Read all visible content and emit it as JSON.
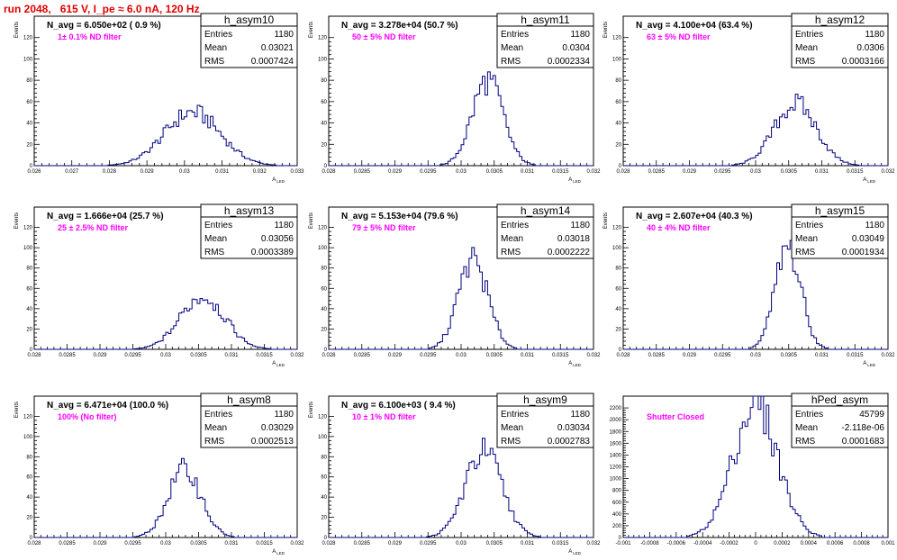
{
  "title": "run 2048,   615 V, I_pe ≈ 6.0 nA, 120 Hz",
  "colors": {
    "title": "#e00000",
    "histogram": "#000080",
    "filter_label": "#ff00ff"
  },
  "chart_data": [
    {
      "type": "histogram",
      "name": "h_asym10",
      "xlabel": "A_LED",
      "ylabel": "Events",
      "xlim": [
        0.026,
        0.033
      ],
      "ylim": [
        0,
        140
      ],
      "xticks": [
        0.026,
        0.027,
        0.028,
        0.029,
        0.03,
        0.031,
        0.032,
        0.033
      ],
      "xticklabels": [
        "0.026",
        "0.027",
        "0.028",
        "0.029",
        "0.03",
        "0.031",
        "0.032",
        "0.033"
      ],
      "yticks": [
        0,
        20,
        40,
        60,
        80,
        100,
        120
      ],
      "navg": "N_avg = 6.050e+02 ( 0.9 %)",
      "filter": "1± 0.1% ND filter",
      "stats": {
        "entries": "1180",
        "mean": "0.03021",
        "rms": "0.0007424"
      },
      "mean": 0.03021,
      "rms": 0.0007424,
      "peak": 50
    },
    {
      "type": "histogram",
      "name": "h_asym11",
      "xlabel": "A_LED",
      "ylabel": "Events",
      "xlim": [
        0.028,
        0.032
      ],
      "ylim": [
        0,
        140
      ],
      "xticks": [
        0.028,
        0.0285,
        0.029,
        0.0295,
        0.03,
        0.0305,
        0.031,
        0.0315,
        0.032
      ],
      "xticklabels": [
        "0.028",
        "0.0285",
        "0.029",
        "0.0295",
        "0.03",
        "0.0305",
        "0.031",
        "0.0315",
        "0.032"
      ],
      "yticks": [
        0,
        20,
        40,
        60,
        80,
        100,
        120
      ],
      "navg": "N_avg = 3.278e+04 (50.7 %)",
      "filter": "50 ± 5% ND filter",
      "stats": {
        "entries": "1180",
        "mean": "0.0304",
        "rms": "0.0002334"
      },
      "mean": 0.0304,
      "rms": 0.0002334,
      "peak": 80
    },
    {
      "type": "histogram",
      "name": "h_asym12",
      "xlabel": "A_LED",
      "ylabel": "Events",
      "xlim": [
        0.028,
        0.032
      ],
      "ylim": [
        0,
        140
      ],
      "xticks": [
        0.028,
        0.0285,
        0.029,
        0.0295,
        0.03,
        0.0305,
        0.031,
        0.0315,
        0.032
      ],
      "xticklabels": [
        "0.028",
        "0.0285",
        "0.029",
        "0.0295",
        "0.03",
        "0.0305",
        "0.031",
        "0.0315",
        "0.032"
      ],
      "yticks": [
        0,
        20,
        40,
        60,
        80,
        100,
        120
      ],
      "navg": "N_avg = 4.100e+04 (63.4 %)",
      "filter": "63 ± 5% ND filter",
      "stats": {
        "entries": "1180",
        "mean": "0.0306",
        "rms": "0.0003166"
      },
      "mean": 0.0306,
      "rms": 0.0003166,
      "peak": 58
    },
    {
      "type": "histogram",
      "name": "h_asym13",
      "xlabel": "A_LED",
      "ylabel": "Events",
      "xlim": [
        0.028,
        0.032
      ],
      "ylim": [
        0,
        140
      ],
      "xticks": [
        0.028,
        0.0285,
        0.029,
        0.0295,
        0.03,
        0.0305,
        0.031,
        0.0315,
        0.032
      ],
      "xticklabels": [
        "0.028",
        "0.0285",
        "0.029",
        "0.0295",
        "0.03",
        "0.0305",
        "0.031",
        "0.0315",
        "0.032"
      ],
      "yticks": [
        0,
        20,
        40,
        60,
        80,
        100,
        120
      ],
      "navg": "N_avg = 1.666e+04 (25.7 %)",
      "filter": "25 ± 2.5% ND filter",
      "stats": {
        "entries": "1180",
        "mean": "0.03056",
        "rms": "0.0003389"
      },
      "mean": 0.03056,
      "rms": 0.0003389,
      "peak": 52
    },
    {
      "type": "histogram",
      "name": "h_asym14",
      "xlabel": "A_LED",
      "ylabel": "Events",
      "xlim": [
        0.028,
        0.032
      ],
      "ylim": [
        0,
        140
      ],
      "xticks": [
        0.028,
        0.0285,
        0.029,
        0.0295,
        0.03,
        0.0305,
        0.031,
        0.0315,
        0.032
      ],
      "xticklabels": [
        "0.028",
        "0.0285",
        "0.029",
        "0.0295",
        "0.03",
        "0.0305",
        "0.031",
        "0.0315",
        "0.032"
      ],
      "yticks": [
        0,
        20,
        40,
        60,
        80,
        100,
        120
      ],
      "navg": "N_avg = 5.153e+04 (79.6 %)",
      "filter": "79 ± 5% ND filter",
      "stats": {
        "entries": "1180",
        "mean": "0.03018",
        "rms": "0.0002222"
      },
      "mean": 0.03018,
      "rms": 0.0002222,
      "peak": 88
    },
    {
      "type": "histogram",
      "name": "h_asym15",
      "xlabel": "A_LED",
      "ylabel": "Events",
      "xlim": [
        0.028,
        0.032
      ],
      "ylim": [
        0,
        140
      ],
      "xticks": [
        0.028,
        0.0285,
        0.029,
        0.0295,
        0.03,
        0.0305,
        0.031,
        0.0315,
        0.032
      ],
      "xticklabels": [
        "0.028",
        "0.0285",
        "0.029",
        "0.0295",
        "0.03",
        "0.0305",
        "0.031",
        "0.0315",
        "0.032"
      ],
      "yticks": [
        0,
        20,
        40,
        60,
        80,
        100,
        120
      ],
      "navg": "N_avg = 2.607e+04 (40.3 %)",
      "filter": "40 ± 4% ND filter",
      "stats": {
        "entries": "1180",
        "mean": "0.03049",
        "rms": "0.0001934"
      },
      "mean": 0.03049,
      "rms": 0.0001934,
      "peak": 100
    },
    {
      "type": "histogram",
      "name": "h_asym8",
      "xlabel": "A_LED",
      "ylabel": "Events",
      "xlim": [
        0.028,
        0.032
      ],
      "ylim": [
        0,
        140
      ],
      "xticks": [
        0.028,
        0.0285,
        0.029,
        0.0295,
        0.03,
        0.0305,
        0.031,
        0.0315,
        0.032
      ],
      "xticklabels": [
        "0.028",
        "0.0285",
        "0.029",
        "0.0295",
        "0.03",
        "0.0305",
        "0.031",
        "0.0315",
        "0.032"
      ],
      "yticks": [
        0,
        20,
        40,
        60,
        80,
        100,
        120
      ],
      "navg": "N_avg = 6.471e+04 (100.0 %)",
      "filter": "100% (No filter)",
      "stats": {
        "entries": "1180",
        "mean": "0.03029",
        "rms": "0.0002513"
      },
      "mean": 0.03029,
      "rms": 0.0002513,
      "peak": 67
    },
    {
      "type": "histogram",
      "name": "h_asym9",
      "xlabel": "A_LED",
      "ylabel": "Events",
      "xlim": [
        0.028,
        0.032
      ],
      "ylim": [
        0,
        140
      ],
      "xticks": [
        0.028,
        0.0285,
        0.029,
        0.0295,
        0.03,
        0.0305,
        0.031,
        0.0315,
        0.032
      ],
      "xticklabels": [
        "0.028",
        "0.0285",
        "0.029",
        "0.0295",
        "0.03",
        "0.0305",
        "0.031",
        "0.0315",
        "0.032"
      ],
      "yticks": [
        0,
        20,
        40,
        60,
        80,
        100,
        120
      ],
      "navg": "N_avg = 6.100e+03 ( 9.4 %)",
      "filter": "10 ± 1% ND filter",
      "stats": {
        "entries": "1180",
        "mean": "0.03034",
        "rms": "0.0002783"
      },
      "mean": 0.03034,
      "rms": 0.0002783,
      "peak": 85
    },
    {
      "type": "histogram",
      "name": "hPed_asym",
      "xlabel": "",
      "ylabel": "",
      "xlim": [
        -0.001,
        0.001
      ],
      "ylim": [
        0,
        2400
      ],
      "xticks": [
        -0.001,
        -0.0008,
        -0.0006,
        -0.0004,
        -0.0002,
        0,
        0.0002,
        0.0004,
        0.0006,
        0.0008,
        0.001
      ],
      "xticklabels": [
        "-0.001",
        "-0.0008",
        "-0.0006",
        "-0.0004",
        "-0.0002",
        "0",
        "0.0002",
        "0.0004",
        "0.0006",
        "0.0008",
        "0.001"
      ],
      "yticks": [
        0,
        200,
        400,
        600,
        800,
        1000,
        1200,
        1400,
        1600,
        1800,
        2000,
        2200
      ],
      "navg": "",
      "filter": "Shutter Closed",
      "stats": {
        "entries": "45799",
        "mean": "-2.118e-06",
        "rms": "0.0001683"
      },
      "mean": -2.118e-06,
      "rms": 0.0001683,
      "peak": 2250
    }
  ],
  "labels": {
    "entries": "Entries",
    "mean": "Mean",
    "rms": "RMS"
  }
}
